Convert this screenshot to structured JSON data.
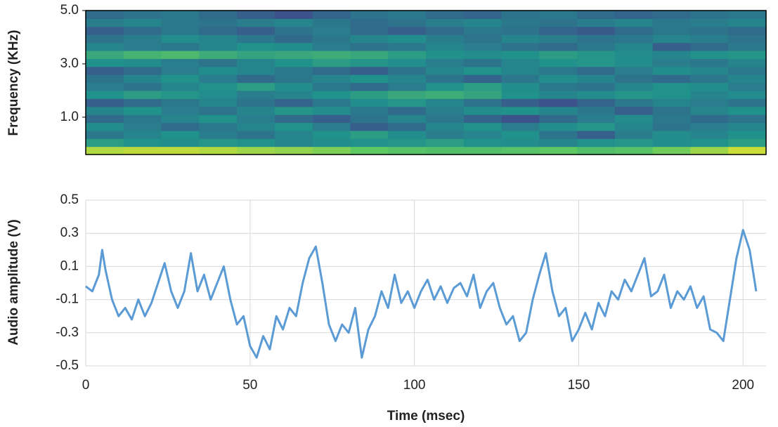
{
  "chart_data": [
    {
      "type": "heatmap",
      "y_label": "Frequency (KHz)",
      "colormap": "viridis",
      "zlim": [
        0,
        1
      ],
      "xlim": [
        0,
        207
      ],
      "ylim": [
        -0.4,
        5
      ],
      "yticks": [
        {
          "value": 1,
          "label": "1.0"
        },
        {
          "value": 3,
          "label": "3.0"
        },
        {
          "value": 5,
          "label": "5.0"
        }
      ],
      "x": [
        5.75,
        17.25,
        28.75,
        40.25,
        51.75,
        63.25,
        74.75,
        86.25,
        97.75,
        109.25,
        120.75,
        132.25,
        143.75,
        155.25,
        166.75,
        178.25,
        189.75,
        201.25
      ],
      "y": [
        -0.25,
        0.05,
        0.35,
        0.65,
        0.95,
        1.25,
        1.55,
        1.85,
        2.15,
        2.45,
        2.75,
        3.05,
        3.35,
        3.65,
        3.95,
        4.25,
        4.55,
        4.85
      ],
      "z": [
        [
          0.88,
          0.9,
          0.9,
          0.88,
          0.85,
          0.83,
          0.8,
          0.75,
          0.72,
          0.7,
          0.7,
          0.72,
          0.75,
          0.7,
          0.72,
          0.78,
          0.85,
          0.92
        ],
        [
          0.55,
          0.5,
          0.48,
          0.52,
          0.5,
          0.45,
          0.48,
          0.5,
          0.52,
          0.55,
          0.5,
          0.48,
          0.45,
          0.5,
          0.52,
          0.48,
          0.5,
          0.55
        ],
        [
          0.4,
          0.45,
          0.5,
          0.42,
          0.38,
          0.45,
          0.5,
          0.55,
          0.48,
          0.42,
          0.45,
          0.5,
          0.38,
          0.3,
          0.42,
          0.48,
          0.45,
          0.5
        ],
        [
          0.48,
          0.42,
          0.35,
          0.4,
          0.45,
          0.5,
          0.42,
          0.3,
          0.35,
          0.45,
          0.5,
          0.42,
          0.48,
          0.52,
          0.45,
          0.38,
          0.42,
          0.45
        ],
        [
          0.35,
          0.4,
          0.45,
          0.5,
          0.42,
          0.35,
          0.3,
          0.38,
          0.45,
          0.4,
          0.32,
          0.25,
          0.35,
          0.42,
          0.48,
          0.4,
          0.35,
          0.38
        ],
        [
          0.45,
          0.5,
          0.42,
          0.38,
          0.45,
          0.52,
          0.48,
          0.4,
          0.35,
          0.42,
          0.48,
          0.5,
          0.45,
          0.4,
          0.3,
          0.38,
          0.45,
          0.5
        ],
        [
          0.3,
          0.35,
          0.4,
          0.45,
          0.38,
          0.32,
          0.4,
          0.48,
          0.52,
          0.45,
          0.38,
          0.3,
          0.25,
          0.32,
          0.4,
          0.45,
          0.42,
          0.38
        ],
        [
          0.5,
          0.55,
          0.52,
          0.48,
          0.42,
          0.45,
          0.5,
          0.55,
          0.6,
          0.62,
          0.58,
          0.5,
          0.45,
          0.48,
          0.52,
          0.5,
          0.45,
          0.48
        ],
        [
          0.42,
          0.38,
          0.45,
          0.5,
          0.55,
          0.48,
          0.4,
          0.35,
          0.42,
          0.5,
          0.55,
          0.48,
          0.4,
          0.38,
          0.45,
          0.5,
          0.48,
          0.42
        ],
        [
          0.38,
          0.45,
          0.5,
          0.42,
          0.35,
          0.4,
          0.45,
          0.5,
          0.45,
          0.38,
          0.32,
          0.4,
          0.48,
          0.45,
          0.38,
          0.35,
          0.4,
          0.45
        ],
        [
          0.3,
          0.35,
          0.42,
          0.48,
          0.45,
          0.4,
          0.35,
          0.3,
          0.38,
          0.45,
          0.5,
          0.45,
          0.4,
          0.35,
          0.42,
          0.48,
          0.45,
          0.4
        ],
        [
          0.5,
          0.48,
          0.42,
          0.38,
          0.45,
          0.5,
          0.55,
          0.52,
          0.48,
          0.42,
          0.38,
          0.45,
          0.5,
          0.52,
          0.48,
          0.42,
          0.4,
          0.45
        ],
        [
          0.6,
          0.65,
          0.68,
          0.62,
          0.58,
          0.6,
          0.62,
          0.6,
          0.55,
          0.5,
          0.48,
          0.5,
          0.55,
          0.52,
          0.48,
          0.45,
          0.5,
          0.52
        ],
        [
          0.45,
          0.42,
          0.4,
          0.45,
          0.5,
          0.48,
          0.42,
          0.38,
          0.4,
          0.45,
          0.42,
          0.38,
          0.35,
          0.4,
          0.45,
          0.3,
          0.35,
          0.4
        ],
        [
          0.38,
          0.42,
          0.48,
          0.45,
          0.4,
          0.35,
          0.4,
          0.45,
          0.48,
          0.42,
          0.38,
          0.45,
          0.42,
          0.38,
          0.4,
          0.45,
          0.42,
          0.38
        ],
        [
          0.3,
          0.35,
          0.4,
          0.35,
          0.3,
          0.38,
          0.42,
          0.35,
          0.3,
          0.35,
          0.4,
          0.38,
          0.32,
          0.28,
          0.35,
          0.4,
          0.38,
          0.35
        ],
        [
          0.42,
          0.45,
          0.4,
          0.38,
          0.42,
          0.45,
          0.4,
          0.35,
          0.38,
          0.42,
          0.45,
          0.4,
          0.38,
          0.42,
          0.45,
          0.4,
          0.42,
          0.45
        ],
        [
          0.35,
          0.38,
          0.4,
          0.35,
          0.3,
          0.25,
          0.32,
          0.38,
          0.4,
          0.35,
          0.32,
          0.38,
          0.4,
          0.35,
          0.32,
          0.35,
          0.38,
          0.4
        ]
      ]
    },
    {
      "type": "line",
      "x_label": "Time (msec)",
      "y_label": "Audio amplitude (V)",
      "color": "#5b9bd5",
      "grid": true,
      "xlim": [
        0,
        207
      ],
      "xticks": [
        0,
        50,
        100,
        150,
        200
      ],
      "ylim": [
        -0.5,
        0.5
      ],
      "yticks": [
        -0.5,
        -0.3,
        -0.1,
        0.1,
        0.3,
        0.5
      ],
      "x": [
        0,
        2,
        4,
        5,
        6,
        8,
        10,
        12,
        14,
        16,
        18,
        20,
        22,
        24,
        26,
        28,
        30,
        32,
        34,
        36,
        38,
        40,
        42,
        44,
        46,
        48,
        50,
        52,
        54,
        56,
        58,
        60,
        62,
        64,
        66,
        68,
        70,
        72,
        74,
        76,
        78,
        80,
        82,
        84,
        86,
        88,
        90,
        92,
        94,
        96,
        98,
        100,
        102,
        104,
        106,
        108,
        110,
        112,
        114,
        116,
        118,
        120,
        122,
        124,
        126,
        128,
        130,
        132,
        134,
        136,
        138,
        140,
        142,
        144,
        146,
        148,
        150,
        152,
        154,
        156,
        158,
        160,
        162,
        164,
        166,
        168,
        170,
        172,
        174,
        176,
        178,
        180,
        182,
        184,
        186,
        188,
        190,
        192,
        194,
        196,
        198,
        200,
        202,
        204
      ],
      "values": [
        -0.02,
        -0.05,
        0.05,
        0.2,
        0.08,
        -0.1,
        -0.2,
        -0.15,
        -0.22,
        -0.1,
        -0.2,
        -0.12,
        0.0,
        0.12,
        -0.05,
        -0.15,
        -0.05,
        0.18,
        -0.05,
        0.05,
        -0.1,
        0.0,
        0.1,
        -0.1,
        -0.25,
        -0.2,
        -0.38,
        -0.45,
        -0.32,
        -0.4,
        -0.2,
        -0.28,
        -0.15,
        -0.2,
        0.0,
        0.15,
        0.22,
        0.0,
        -0.25,
        -0.35,
        -0.25,
        -0.3,
        -0.15,
        -0.45,
        -0.28,
        -0.2,
        -0.05,
        -0.15,
        0.05,
        -0.12,
        -0.05,
        -0.15,
        -0.05,
        0.02,
        -0.1,
        -0.02,
        -0.12,
        -0.03,
        0.0,
        -0.08,
        0.05,
        -0.15,
        -0.05,
        0.0,
        -0.15,
        -0.25,
        -0.2,
        -0.35,
        -0.3,
        -0.1,
        0.05,
        0.18,
        -0.05,
        -0.2,
        -0.15,
        -0.35,
        -0.28,
        -0.18,
        -0.28,
        -0.12,
        -0.2,
        -0.05,
        -0.1,
        0.02,
        -0.05,
        0.05,
        0.15,
        -0.08,
        -0.05,
        0.05,
        -0.15,
        -0.05,
        -0.1,
        -0.02,
        -0.15,
        -0.08,
        -0.28,
        -0.3,
        -0.35,
        -0.1,
        0.15,
        0.32,
        0.2,
        -0.05
      ]
    }
  ]
}
